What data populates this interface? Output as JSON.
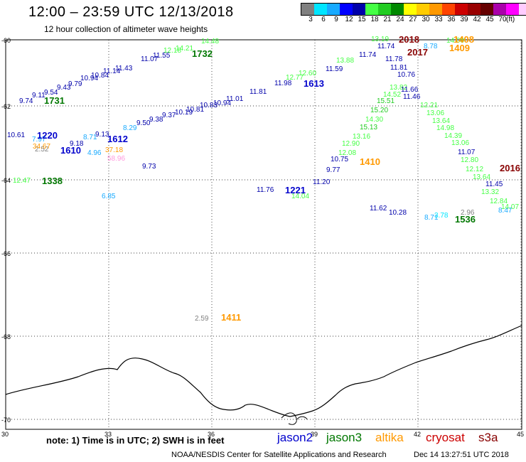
{
  "header": {
    "title": "12:00 – 23:59 UTC 12/13/2018",
    "subtitle": "12 hour collection of altimeter wave heights"
  },
  "legend": {
    "colors": [
      "#808080",
      "#00e5ff",
      "#18aaff",
      "#0000ff",
      "#0000aa",
      "#44ff44",
      "#22cc22",
      "#008800",
      "#ffff00",
      "#ffcc00",
      "#ff9900",
      "#ff4400",
      "#cc0000",
      "#990000",
      "#660000",
      "#aa00aa",
      "#ff00ff",
      "#ffccff",
      "#000000"
    ],
    "labels": [
      "3",
      "6",
      "9",
      "12",
      "15",
      "18",
      "21",
      "24",
      "27",
      "30",
      "33",
      "36",
      "39",
      "42",
      "45",
      "70"
    ],
    "unit": "(ft)"
  },
  "axes": {
    "lat_labels": [
      "-60",
      "-62",
      "-64",
      "-66",
      "-68",
      "-70"
    ],
    "lon_labels": [
      "30",
      "33",
      "36",
      "39",
      "42",
      "45"
    ]
  },
  "footer": {
    "note": "note:  1) Time is in UTC; 2) SWH is in feet",
    "satellites": [
      {
        "name": "jason2",
        "color": "#0000cc"
      },
      {
        "name": "jason3",
        "color": "#007700"
      },
      {
        "name": "altika",
        "color": "#ff9900"
      },
      {
        "name": "cryosat",
        "color": "#cc0000"
      },
      {
        "name": "s3a",
        "color": "#880000"
      }
    ],
    "credit": "NOAA/NESDIS Center for Satellite Applications and Research",
    "stamp": "Dec 14 13:27:51 UTC 2018"
  },
  "map_data": {
    "swh_labels": [
      {
        "t": "9.74",
        "c": "#0000aa"
      },
      {
        "t": "9.11",
        "c": "#0000aa"
      },
      {
        "t": "9.54",
        "c": "#0000aa"
      },
      {
        "t": "9.43",
        "c": "#0000aa"
      },
      {
        "t": "9.79",
        "c": "#0000aa"
      },
      {
        "t": "10.94",
        "c": "#0000aa"
      },
      {
        "t": "10.84",
        "c": "#0000aa"
      },
      {
        "t": "11.14",
        "c": "#0000aa"
      },
      {
        "t": "11.43",
        "c": "#0000aa"
      },
      {
        "t": "11.07",
        "c": "#0000aa"
      },
      {
        "t": "11.55",
        "c": "#0000aa"
      },
      {
        "t": "12.18",
        "c": "#44ff44"
      },
      {
        "t": "14.21",
        "c": "#44ff44"
      },
      {
        "t": "14.48",
        "c": "#44ff44"
      },
      {
        "t": "10.61",
        "c": "#0000aa"
      },
      {
        "t": "7.97",
        "c": "#18aaff"
      },
      {
        "t": "2.52",
        "c": "#808080"
      },
      {
        "t": "34.67",
        "c": "#ff9900"
      },
      {
        "t": "9.18",
        "c": "#0000aa"
      },
      {
        "t": "8.71",
        "c": "#18aaff"
      },
      {
        "t": "9.13",
        "c": "#0000aa"
      },
      {
        "t": "37.18",
        "c": "#ff9900"
      },
      {
        "t": "8.29",
        "c": "#18aaff"
      },
      {
        "t": "9.50",
        "c": "#0000aa"
      },
      {
        "t": "9.38",
        "c": "#0000aa"
      },
      {
        "t": "9.37",
        "c": "#0000aa"
      },
      {
        "t": "10.19",
        "c": "#0000aa"
      },
      {
        "t": "10.81",
        "c": "#0000aa"
      },
      {
        "t": "10.83",
        "c": "#0000aa"
      },
      {
        "t": "10.94",
        "c": "#0000aa"
      },
      {
        "t": "11.01",
        "c": "#0000aa"
      },
      {
        "t": "11.81",
        "c": "#0000aa"
      },
      {
        "t": "11.98",
        "c": "#0000aa"
      },
      {
        "t": "12.77",
        "c": "#44ff44"
      },
      {
        "t": "12.60",
        "c": "#44ff44"
      },
      {
        "t": "11.59",
        "c": "#0000aa"
      },
      {
        "t": "13.88",
        "c": "#44ff44"
      },
      {
        "t": "11.74",
        "c": "#0000aa"
      },
      {
        "t": "4.96",
        "c": "#18aaff"
      },
      {
        "t": "58.96",
        "c": "#ff99dd"
      },
      {
        "t": "9.73",
        "c": "#0000aa"
      },
      {
        "t": "12.47",
        "c": "#44ff44"
      },
      {
        "t": "6.85",
        "c": "#18aaff"
      },
      {
        "t": "11.76",
        "c": "#0000aa"
      },
      {
        "t": "14.04",
        "c": "#44ff44"
      },
      {
        "t": "11.20",
        "c": "#0000aa"
      },
      {
        "t": "9.77",
        "c": "#0000aa"
      },
      {
        "t": "10.75",
        "c": "#0000aa"
      },
      {
        "t": "12.08",
        "c": "#44ff44"
      },
      {
        "t": "12.90",
        "c": "#44ff44"
      },
      {
        "t": "13.16",
        "c": "#44ff44"
      },
      {
        "t": "15.13",
        "c": "#22cc22"
      },
      {
        "t": "14.30",
        "c": "#44ff44"
      },
      {
        "t": "15.20",
        "c": "#22cc22"
      },
      {
        "t": "15.51",
        "c": "#22cc22"
      },
      {
        "t": "14.52",
        "c": "#44ff44"
      },
      {
        "t": "13.82",
        "c": "#44ff44"
      },
      {
        "t": "13.19",
        "c": "#44ff44"
      },
      {
        "t": "11.74",
        "c": "#0000aa"
      },
      {
        "t": "11.78",
        "c": "#0000aa"
      },
      {
        "t": "11.81",
        "c": "#0000aa"
      },
      {
        "t": "10.76",
        "c": "#0000aa"
      },
      {
        "t": "11.66",
        "c": "#0000aa"
      },
      {
        "t": "11.46",
        "c": "#0000aa"
      },
      {
        "t": "12.21",
        "c": "#44ff44"
      },
      {
        "t": "13.06",
        "c": "#44ff44"
      },
      {
        "t": "13.64",
        "c": "#44ff44"
      },
      {
        "t": "14.98",
        "c": "#44ff44"
      },
      {
        "t": "14.39",
        "c": "#44ff44"
      },
      {
        "t": "13.06",
        "c": "#44ff44"
      },
      {
        "t": "11.07",
        "c": "#0000aa"
      },
      {
        "t": "12.80",
        "c": "#44ff44"
      },
      {
        "t": "12.12",
        "c": "#44ff44"
      },
      {
        "t": "13.64",
        "c": "#44ff44"
      },
      {
        "t": "11.45",
        "c": "#0000aa"
      },
      {
        "t": "13.32",
        "c": "#44ff44"
      },
      {
        "t": "12.84",
        "c": "#44ff44"
      },
      {
        "t": "8.47",
        "c": "#18aaff"
      },
      {
        "t": "14.07",
        "c": "#44ff44"
      },
      {
        "t": "14.00",
        "c": "#44ff44"
      },
      {
        "t": "8.78",
        "c": "#18aaff"
      },
      {
        "t": "11.62",
        "c": "#0000aa"
      },
      {
        "t": "10.28",
        "c": "#0000aa"
      },
      {
        "t": "8.71",
        "c": "#18aaff"
      },
      {
        "t": "3.78",
        "c": "#00e5ff"
      },
      {
        "t": "2.96",
        "c": "#808080"
      },
      {
        "t": "2.59",
        "c": "#808080"
      }
    ],
    "pass_ids": [
      {
        "t": "1731",
        "c": "#007700"
      },
      {
        "t": "1732",
        "c": "#007700"
      },
      {
        "t": "1220",
        "c": "#0000cc"
      },
      {
        "t": "1612",
        "c": "#0000cc"
      },
      {
        "t": "1610",
        "c": "#0000cc"
      },
      {
        "t": "1613",
        "c": "#0000cc"
      },
      {
        "t": "1338",
        "c": "#007700"
      },
      {
        "t": "1221",
        "c": "#0000cc"
      },
      {
        "t": "1410",
        "c": "#ff9900"
      },
      {
        "t": "2018",
        "c": "#880000"
      },
      {
        "t": "2017",
        "c": "#880000"
      },
      {
        "t": "1408",
        "c": "#ff9900"
      },
      {
        "t": "1409",
        "c": "#ff9900"
      },
      {
        "t": "2016",
        "c": "#880000"
      },
      {
        "t": "1536",
        "c": "#007700"
      },
      {
        "t": "1411",
        "c": "#ff9900"
      }
    ]
  }
}
